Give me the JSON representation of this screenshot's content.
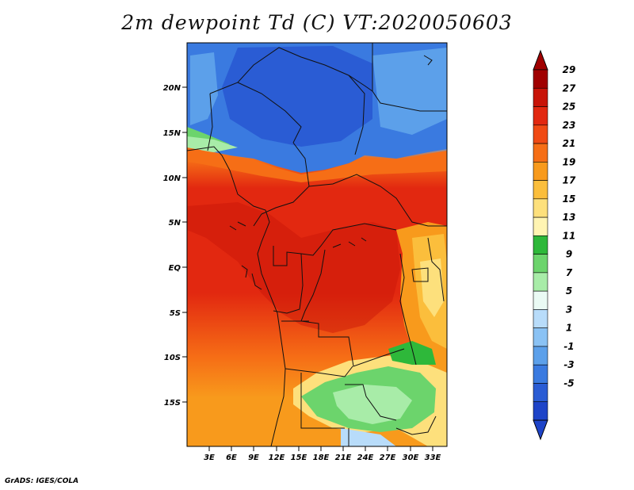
{
  "title": "2m dewpoint Td (C) VT:2020050603",
  "footer": "GrADS: IGES/COLA",
  "map": {
    "lat_labels": [
      "20N",
      "15N",
      "10N",
      "5N",
      "EQ",
      "5S",
      "10S",
      "15S"
    ],
    "lon_labels": [
      "3E",
      "6E",
      "9E",
      "12E",
      "15E",
      "18E",
      "21E",
      "24E",
      "27E",
      "30E",
      "33E"
    ]
  },
  "colorbar": {
    "labels": [
      "29",
      "27",
      "25",
      "23",
      "21",
      "19",
      "17",
      "15",
      "13",
      "11",
      "9",
      "7",
      "5",
      "3",
      "1",
      "-1",
      "-3",
      "-5"
    ],
    "colors": [
      "#a00000",
      "#c81408",
      "#e22810",
      "#f04a14",
      "#f66e16",
      "#f89a1c",
      "#fbbe3c",
      "#fde07c",
      "#fff4b2",
      "#2eb83a",
      "#6cd46c",
      "#a8eca8",
      "#eafaf4",
      "#b8dcfa",
      "#8ac2f4",
      "#5ca0ea",
      "#3a7ae0",
      "#2a5cd4",
      "#1e44c8"
    ],
    "top_color": "#a00000",
    "bottom_color": "#1e44c8"
  }
}
